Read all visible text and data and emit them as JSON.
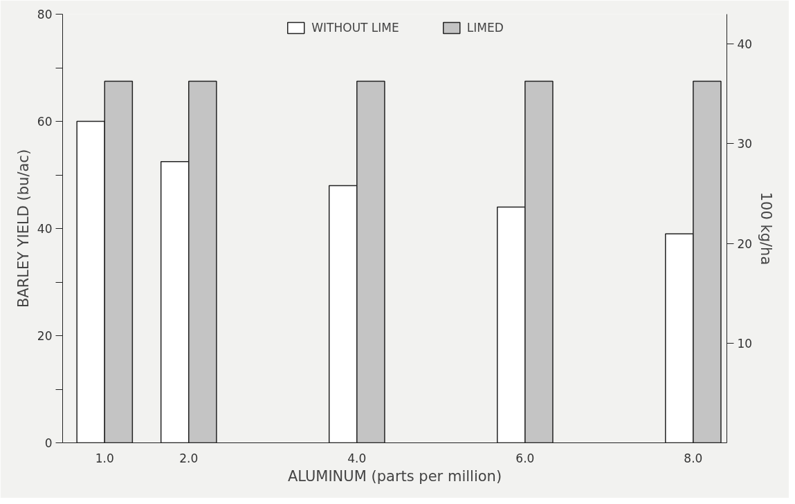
{
  "chart_data": {
    "type": "bar",
    "xlabel": "ALUMINUM (parts per million)",
    "ylabel": "BARLEY YIELD (bu/ac)",
    "y2label": "100 kg/ha",
    "x": [
      1,
      2,
      4,
      6,
      8
    ],
    "series": [
      {
        "name": "WITHOUT LIME",
        "color": "#ffffff",
        "values": [
          60,
          52.5,
          48,
          44,
          39
        ]
      },
      {
        "name": "LIMED",
        "color": "#c4c4c4",
        "values": [
          67.5,
          67.5,
          67.5,
          67.5,
          67.5
        ]
      }
    ],
    "xlim": [
      0.5,
      8.4
    ],
    "xticks": [
      {
        "value": 1,
        "label": "1.0"
      },
      {
        "value": 2,
        "label": "2.0"
      },
      {
        "value": 4,
        "label": "4.0"
      },
      {
        "value": 6,
        "label": "6.0"
      },
      {
        "value": 8,
        "label": "8.0"
      }
    ],
    "ylim": [
      0,
      80
    ],
    "yticks": [
      0,
      {
        "value": 10,
        "label": null
      },
      20,
      {
        "value": 30,
        "label": null
      },
      40,
      {
        "value": 50,
        "label": null
      },
      60,
      {
        "value": 70,
        "label": null
      },
      80
    ],
    "y2lim": [
      0,
      43
    ],
    "y2ticks": [
      10,
      20,
      30,
      40
    ],
    "grid": false,
    "legend": "top"
  }
}
